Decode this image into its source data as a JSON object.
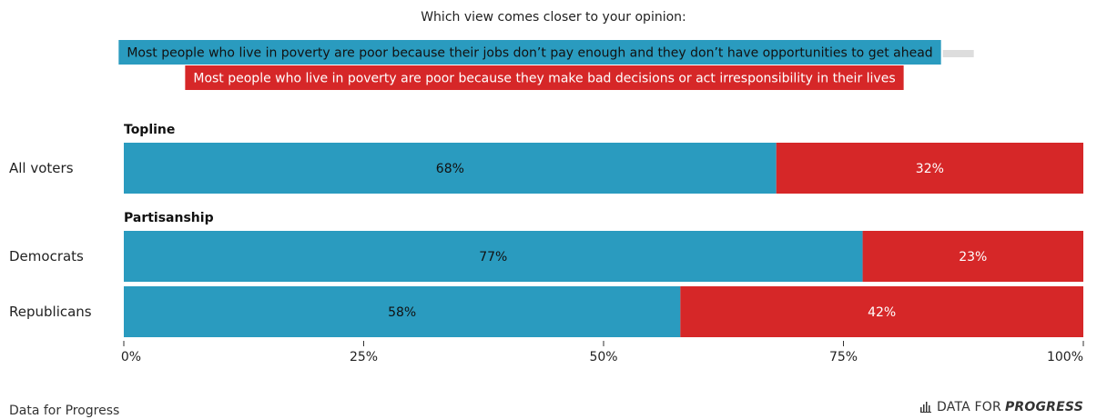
{
  "question": "Which view comes closer to your opinion:",
  "colors": {
    "blue": "#2a9bbf",
    "red": "#d62728",
    "grey": "#dddddd"
  },
  "legend": [
    {
      "label": "Most people who live in poverty are poor because their jobs don’t pay enough and they don’t have opportunities to get ahead",
      "color": "#2a9bbf"
    },
    {
      "label": "Most people who live in poverty are poor because they make bad decisions or act irresponsibility in their lives",
      "color": "#d62728"
    }
  ],
  "footer": {
    "source": "Data for Progress",
    "brand_light": "DATA FOR",
    "brand_bold": "PROGRESS"
  },
  "chart_data": {
    "type": "bar",
    "orientation": "horizontal-stacked",
    "title": "Which view comes closer to your opinion:",
    "groups": [
      {
        "name": "Topline",
        "rows": [
          {
            "label": "All voters",
            "values": [
              68,
              32
            ]
          }
        ]
      },
      {
        "name": "Partisanship",
        "rows": [
          {
            "label": "Democrats",
            "values": [
              77,
              23
            ]
          },
          {
            "label": "Republicans",
            "values": [
              58,
              42
            ]
          }
        ]
      }
    ],
    "series": [
      {
        "name": "Most people who live in poverty are poor because their jobs don’t pay enough and they don’t have opportunities to get ahead"
      },
      {
        "name": "Most people who live in poverty are poor because they make bad decisions or act irresponsibility in their lives"
      }
    ],
    "xlim": [
      0,
      100
    ],
    "ticks": [
      "0%",
      "25%",
      "50%",
      "75%",
      "100%"
    ],
    "legend_position": "top"
  }
}
